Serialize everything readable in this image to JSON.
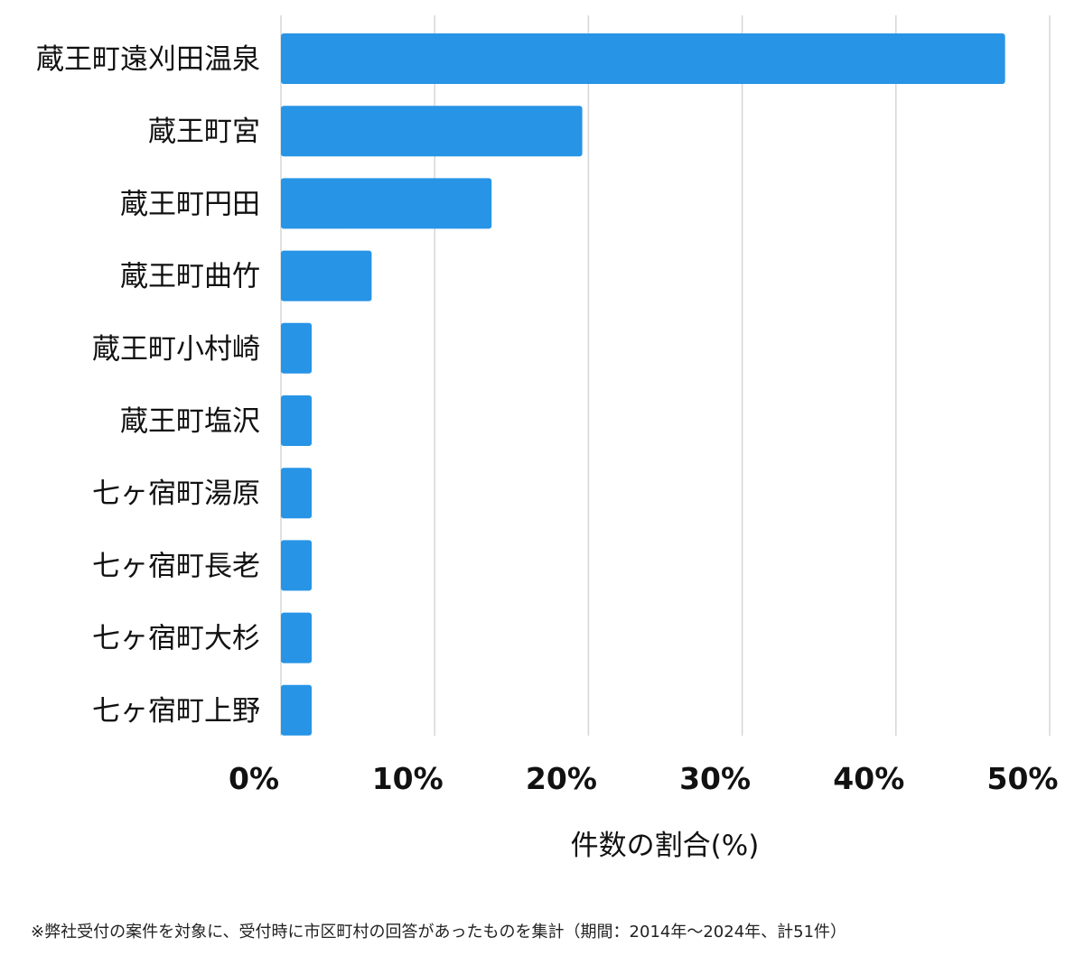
{
  "chart_data": {
    "type": "bar",
    "orientation": "horizontal",
    "categories": [
      "蔵王町遠刈田温泉",
      "蔵王町宮",
      "蔵王町円田",
      "蔵王町曲竹",
      "蔵王町小村崎",
      "蔵王町塩沢",
      "七ヶ宿町湯原",
      "七ヶ宿町長老",
      "七ヶ宿町大杉",
      "七ヶ宿町上野"
    ],
    "values": [
      47.1,
      19.6,
      13.7,
      5.9,
      2.0,
      2.0,
      2.0,
      2.0,
      2.0,
      2.0
    ],
    "xticks": [
      "0%",
      "10%",
      "20%",
      "30%",
      "40%",
      "50%"
    ],
    "xlim": [
      0,
      50
    ],
    "xlabel": "件数の割合(%)",
    "ylabel": "",
    "title": "",
    "grid": true,
    "bar_color": "#2794e6"
  },
  "footnote": "※弊社受付の案件を対象に、受付時に市区町村の回答があったものを集計（期間：2014年〜2024年、計51件）"
}
